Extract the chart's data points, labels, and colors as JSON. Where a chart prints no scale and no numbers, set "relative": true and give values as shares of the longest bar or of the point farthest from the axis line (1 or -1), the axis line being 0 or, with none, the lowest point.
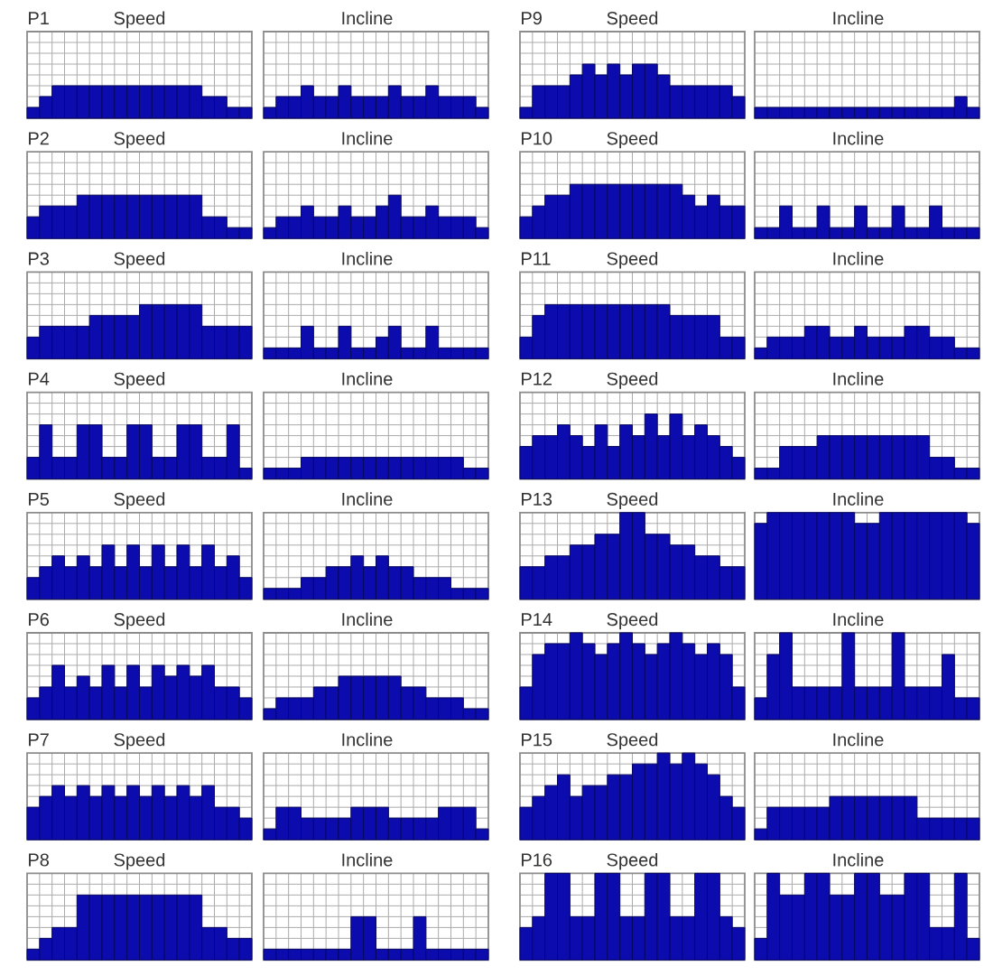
{
  "chart_data": [
    {
      "type": "bar",
      "title": "Speed",
      "annotations": [
        "P1"
      ],
      "categories": [
        null,
        null,
        null,
        null,
        null,
        null,
        null,
        null,
        null,
        null,
        null,
        null,
        null,
        null,
        null,
        null,
        null,
        null
      ],
      "values": [
        0.333,
        0.667,
        1,
        1,
        1,
        1,
        1,
        1,
        1,
        1,
        1,
        1,
        1,
        1,
        0.667,
        0.667,
        0.333,
        0.333
      ],
      "color": "#0c0cae",
      "relative": true,
      "grid": true
    },
    {
      "type": "bar",
      "title": "Incline",
      "categories": [
        null,
        null,
        null,
        null,
        null,
        null,
        null,
        null,
        null,
        null,
        null,
        null,
        null,
        null,
        null,
        null,
        null,
        null
      ],
      "values": [
        0.333,
        0.667,
        0.667,
        1,
        0.667,
        0.667,
        1,
        0.667,
        0.667,
        0.667,
        1,
        0.667,
        0.667,
        1,
        0.667,
        0.667,
        0.667,
        0.333
      ],
      "color": "#0c0cae",
      "relative": true,
      "grid": true
    },
    {
      "type": "bar",
      "title": "Speed",
      "annotations": [
        "P2"
      ],
      "categories": [
        null,
        null,
        null,
        null,
        null,
        null,
        null,
        null,
        null,
        null,
        null,
        null,
        null,
        null,
        null,
        null,
        null,
        null
      ],
      "values": [
        0.5,
        0.75,
        0.75,
        0.75,
        1,
        1,
        1,
        1,
        1,
        1,
        1,
        1,
        1,
        1,
        0.5,
        0.5,
        0.25,
        0.25
      ],
      "color": "#0c0cae",
      "relative": true,
      "grid": true
    },
    {
      "type": "bar",
      "title": "Incline",
      "categories": [
        null,
        null,
        null,
        null,
        null,
        null,
        null,
        null,
        null,
        null,
        null,
        null,
        null,
        null,
        null,
        null,
        null,
        null
      ],
      "values": [
        0.25,
        0.5,
        0.5,
        0.75,
        0.5,
        0.5,
        0.75,
        0.5,
        0.5,
        0.75,
        1,
        0.5,
        0.5,
        0.75,
        0.5,
        0.5,
        0.5,
        0.25
      ],
      "color": "#0c0cae",
      "relative": true,
      "grid": true
    },
    {
      "type": "bar",
      "title": "Speed",
      "annotations": [
        "P3"
      ],
      "categories": [
        null,
        null,
        null,
        null,
        null,
        null,
        null,
        null,
        null,
        null,
        null,
        null,
        null,
        null,
        null,
        null,
        null,
        null
      ],
      "values": [
        0.4,
        0.6,
        0.6,
        0.6,
        0.6,
        0.8,
        0.8,
        0.8,
        0.8,
        1,
        1,
        1,
        1,
        1,
        0.6,
        0.6,
        0.6,
        0.6
      ],
      "color": "#0c0cae",
      "relative": true,
      "grid": true
    },
    {
      "type": "bar",
      "title": "Incline",
      "categories": [
        null,
        null,
        null,
        null,
        null,
        null,
        null,
        null,
        null,
        null,
        null,
        null,
        null,
        null,
        null,
        null,
        null,
        null
      ],
      "values": [
        0.333,
        0.333,
        0.333,
        1,
        0.333,
        0.333,
        1,
        0.333,
        0.333,
        0.667,
        1,
        0.333,
        0.333,
        1,
        0.333,
        0.333,
        0.333,
        0.333
      ],
      "color": "#0c0cae",
      "relative": true,
      "grid": true
    },
    {
      "type": "bar",
      "title": "Speed",
      "annotations": [
        "P4"
      ],
      "categories": [
        null,
        null,
        null,
        null,
        null,
        null,
        null,
        null,
        null,
        null,
        null,
        null,
        null,
        null,
        null,
        null,
        null,
        null
      ],
      "values": [
        0.4,
        1,
        0.4,
        0.4,
        1,
        1,
        0.4,
        0.4,
        1,
        1,
        0.4,
        0.4,
        1,
        1,
        0.4,
        0.4,
        1,
        0.2
      ],
      "color": "#0c0cae",
      "relative": true,
      "grid": true
    },
    {
      "type": "bar",
      "title": "Incline",
      "categories": [
        null,
        null,
        null,
        null,
        null,
        null,
        null,
        null,
        null,
        null,
        null,
        null,
        null,
        null,
        null,
        null,
        null,
        null
      ],
      "values": [
        0.5,
        0.5,
        0.5,
        1,
        1,
        1,
        1,
        1,
        1,
        1,
        1,
        1,
        1,
        1,
        1,
        1,
        0.5,
        0.5
      ],
      "color": "#0c0cae",
      "relative": true,
      "grid": true
    },
    {
      "type": "bar",
      "title": "Speed",
      "annotations": [
        "P5"
      ],
      "categories": [
        null,
        null,
        null,
        null,
        null,
        null,
        null,
        null,
        null,
        null,
        null,
        null,
        null,
        null,
        null,
        null,
        null,
        null
      ],
      "values": [
        0.4,
        0.6,
        0.8,
        0.6,
        0.8,
        0.6,
        1,
        0.6,
        1,
        0.6,
        1,
        0.6,
        1,
        0.6,
        1,
        0.6,
        0.8,
        0.4
      ],
      "color": "#0c0cae",
      "relative": true,
      "grid": true
    },
    {
      "type": "bar",
      "title": "Incline",
      "categories": [
        null,
        null,
        null,
        null,
        null,
        null,
        null,
        null,
        null,
        null,
        null,
        null,
        null,
        null,
        null,
        null,
        null,
        null
      ],
      "values": [
        0.25,
        0.25,
        0.25,
        0.5,
        0.5,
        0.75,
        0.75,
        1,
        0.75,
        1,
        0.75,
        0.75,
        0.5,
        0.5,
        0.5,
        0.25,
        0.25,
        0.25
      ],
      "color": "#0c0cae",
      "relative": true,
      "grid": true
    },
    {
      "type": "bar",
      "title": "Speed",
      "annotations": [
        "P6"
      ],
      "categories": [
        null,
        null,
        null,
        null,
        null,
        null,
        null,
        null,
        null,
        null,
        null,
        null,
        null,
        null,
        null,
        null,
        null,
        null
      ],
      "values": [
        0.4,
        0.6,
        1,
        0.6,
        0.8,
        0.6,
        1,
        0.6,
        1,
        0.6,
        1,
        0.8,
        1,
        0.8,
        1,
        0.6,
        0.6,
        0.4
      ],
      "color": "#0c0cae",
      "relative": true,
      "grid": true
    },
    {
      "type": "bar",
      "title": "Incline",
      "categories": [
        null,
        null,
        null,
        null,
        null,
        null,
        null,
        null,
        null,
        null,
        null,
        null,
        null,
        null,
        null,
        null,
        null,
        null
      ],
      "values": [
        0.25,
        0.5,
        0.5,
        0.5,
        0.75,
        0.75,
        1,
        1,
        1,
        1,
        1,
        0.75,
        0.75,
        0.5,
        0.5,
        0.5,
        0.25,
        0.25
      ],
      "color": "#0c0cae",
      "relative": true,
      "grid": true
    },
    {
      "type": "bar",
      "title": "Speed",
      "annotations": [
        "P7"
      ],
      "categories": [
        null,
        null,
        null,
        null,
        null,
        null,
        null,
        null,
        null,
        null,
        null,
        null,
        null,
        null,
        null,
        null,
        null,
        null
      ],
      "values": [
        0.6,
        0.8,
        1,
        0.8,
        1,
        0.8,
        1,
        0.8,
        1,
        0.8,
        1,
        0.8,
        1,
        0.8,
        1,
        0.6,
        0.6,
        0.4
      ],
      "color": "#0c0cae",
      "relative": true,
      "grid": true
    },
    {
      "type": "bar",
      "title": "Incline",
      "categories": [
        null,
        null,
        null,
        null,
        null,
        null,
        null,
        null,
        null,
        null,
        null,
        null,
        null,
        null,
        null,
        null,
        null,
        null
      ],
      "values": [
        0.333,
        1,
        1,
        0.667,
        0.667,
        0.667,
        0.667,
        1,
        1,
        1,
        0.667,
        0.667,
        0.667,
        0.667,
        1,
        1,
        1,
        0.333
      ],
      "color": "#0c0cae",
      "relative": true,
      "grid": true
    },
    {
      "type": "bar",
      "title": "Speed",
      "annotations": [
        "P8"
      ],
      "categories": [
        null,
        null,
        null,
        null,
        null,
        null,
        null,
        null,
        null,
        null,
        null,
        null,
        null,
        null,
        null,
        null,
        null,
        null
      ],
      "values": [
        0.167,
        0.333,
        0.5,
        0.5,
        1,
        1,
        1,
        1,
        1,
        1,
        1,
        1,
        1,
        1,
        0.5,
        0.5,
        0.333,
        0.333
      ],
      "color": "#0c0cae",
      "relative": true,
      "grid": true
    },
    {
      "type": "bar",
      "title": "Incline",
      "categories": [
        null,
        null,
        null,
        null,
        null,
        null,
        null,
        null,
        null,
        null,
        null,
        null,
        null,
        null,
        null,
        null,
        null,
        null
      ],
      "values": [
        0.25,
        0.25,
        0.25,
        0.25,
        0.25,
        0.25,
        0.25,
        1,
        1,
        0.25,
        0.25,
        0.25,
        1,
        0.25,
        0.25,
        0.25,
        0.25,
        0.25
      ],
      "color": "#0c0cae",
      "relative": true,
      "grid": true
    },
    {
      "type": "bar",
      "title": "Speed",
      "annotations": [
        "P9"
      ],
      "categories": [
        null,
        null,
        null,
        null,
        null,
        null,
        null,
        null,
        null,
        null,
        null,
        null,
        null,
        null,
        null,
        null,
        null,
        null
      ],
      "values": [
        0.2,
        0.6,
        0.6,
        0.6,
        0.8,
        1,
        0.8,
        1,
        0.8,
        1,
        1,
        0.8,
        0.6,
        0.6,
        0.6,
        0.6,
        0.6,
        0.4
      ],
      "color": "#0c0cae",
      "relative": true,
      "grid": true
    },
    {
      "type": "bar",
      "title": "Incline",
      "categories": [
        null,
        null,
        null,
        null,
        null,
        null,
        null,
        null,
        null,
        null,
        null,
        null,
        null,
        null,
        null,
        null,
        null,
        null
      ],
      "values": [
        0.5,
        0.5,
        0.5,
        0.5,
        0.5,
        0.5,
        0.5,
        0.5,
        0.5,
        0.5,
        0.5,
        0.5,
        0.5,
        0.5,
        0.5,
        0.5,
        1,
        0.5
      ],
      "color": "#0c0cae",
      "relative": true,
      "grid": true
    },
    {
      "type": "bar",
      "title": "Speed",
      "annotations": [
        "P10"
      ],
      "categories": [
        null,
        null,
        null,
        null,
        null,
        null,
        null,
        null,
        null,
        null,
        null,
        null,
        null,
        null,
        null,
        null,
        null,
        null
      ],
      "values": [
        0.4,
        0.6,
        0.8,
        0.8,
        1,
        1,
        1,
        1,
        1,
        1,
        1,
        1,
        1,
        0.8,
        0.6,
        0.8,
        0.6,
        0.6
      ],
      "color": "#0c0cae",
      "relative": true,
      "grid": true
    },
    {
      "type": "bar",
      "title": "Incline",
      "categories": [
        null,
        null,
        null,
        null,
        null,
        null,
        null,
        null,
        null,
        null,
        null,
        null,
        null,
        null,
        null,
        null,
        null,
        null
      ],
      "values": [
        0.333,
        0.333,
        1,
        0.333,
        0.333,
        1,
        0.333,
        0.333,
        1,
        0.333,
        0.333,
        1,
        0.333,
        0.333,
        1,
        0.333,
        0.333,
        0.333
      ],
      "color": "#0c0cae",
      "relative": true,
      "grid": true
    },
    {
      "type": "bar",
      "title": "Speed",
      "annotations": [
        "P11"
      ],
      "categories": [
        null,
        null,
        null,
        null,
        null,
        null,
        null,
        null,
        null,
        null,
        null,
        null,
        null,
        null,
        null,
        null,
        null,
        null
      ],
      "values": [
        0.4,
        0.8,
        1,
        1,
        1,
        1,
        1,
        1,
        1,
        1,
        1,
        1,
        0.8,
        0.8,
        0.8,
        0.8,
        0.4,
        0.4
      ],
      "color": "#0c0cae",
      "relative": true,
      "grid": true
    },
    {
      "type": "bar",
      "title": "Incline",
      "categories": [
        null,
        null,
        null,
        null,
        null,
        null,
        null,
        null,
        null,
        null,
        null,
        null,
        null,
        null,
        null,
        null,
        null,
        null
      ],
      "values": [
        0.333,
        0.667,
        0.667,
        0.667,
        1,
        1,
        0.667,
        0.667,
        1,
        0.667,
        0.667,
        0.667,
        1,
        1,
        0.667,
        0.667,
        0.333,
        0.333
      ],
      "color": "#0c0cae",
      "relative": true,
      "grid": true
    },
    {
      "type": "bar",
      "title": "Speed",
      "annotations": [
        "P12"
      ],
      "categories": [
        null,
        null,
        null,
        null,
        null,
        null,
        null,
        null,
        null,
        null,
        null,
        null,
        null,
        null,
        null,
        null,
        null,
        null
      ],
      "values": [
        0.5,
        0.667,
        0.667,
        0.833,
        0.667,
        0.5,
        0.833,
        0.5,
        0.833,
        0.667,
        1,
        0.667,
        1,
        0.667,
        0.833,
        0.667,
        0.5,
        0.333
      ],
      "color": "#0c0cae",
      "relative": true,
      "grid": true
    },
    {
      "type": "bar",
      "title": "Incline",
      "categories": [
        null,
        null,
        null,
        null,
        null,
        null,
        null,
        null,
        null,
        null,
        null,
        null,
        null,
        null,
        null,
        null,
        null,
        null
      ],
      "values": [
        0.25,
        0.25,
        0.75,
        0.75,
        0.75,
        1,
        1,
        1,
        1,
        1,
        1,
        1,
        1,
        1,
        0.5,
        0.5,
        0.25,
        0.25
      ],
      "color": "#0c0cae",
      "relative": true,
      "grid": true
    },
    {
      "type": "bar",
      "title": "Speed",
      "annotations": [
        "P13"
      ],
      "categories": [
        null,
        null,
        null,
        null,
        null,
        null,
        null,
        null,
        null,
        null,
        null,
        null,
        null,
        null,
        null,
        null,
        null,
        null
      ],
      "values": [
        0.375,
        0.375,
        0.5,
        0.5,
        0.625,
        0.625,
        0.75,
        0.75,
        1,
        1,
        0.75,
        0.75,
        0.625,
        0.625,
        0.5,
        0.5,
        0.375,
        0.375
      ],
      "color": "#0c0cae",
      "relative": true,
      "grid": true
    },
    {
      "type": "bar",
      "title": "Incline",
      "categories": [
        null,
        null,
        null,
        null,
        null,
        null,
        null,
        null,
        null,
        null,
        null,
        null,
        null,
        null,
        null,
        null,
        null,
        null
      ],
      "values": [
        0.875,
        1,
        1,
        1,
        1,
        1,
        1,
        1,
        0.875,
        0.875,
        1,
        1,
        1,
        1,
        1,
        1,
        1,
        0.875
      ],
      "color": "#0c0cae",
      "relative": true,
      "grid": true
    },
    {
      "type": "bar",
      "title": "Speed",
      "annotations": [
        "P14"
      ],
      "categories": [
        null,
        null,
        null,
        null,
        null,
        null,
        null,
        null,
        null,
        null,
        null,
        null,
        null,
        null,
        null,
        null,
        null,
        null
      ],
      "values": [
        0.375,
        0.75,
        0.875,
        0.875,
        1,
        0.875,
        0.75,
        0.875,
        1,
        0.875,
        0.75,
        0.875,
        1,
        0.875,
        0.75,
        0.875,
        0.75,
        0.375
      ],
      "color": "#0c0cae",
      "relative": true,
      "grid": true
    },
    {
      "type": "bar",
      "title": "Incline",
      "categories": [
        null,
        null,
        null,
        null,
        null,
        null,
        null,
        null,
        null,
        null,
        null,
        null,
        null,
        null,
        null,
        null,
        null,
        null
      ],
      "values": [
        0.25,
        0.75,
        1,
        0.375,
        0.375,
        0.375,
        0.375,
        1,
        0.375,
        0.375,
        0.375,
        1,
        0.375,
        0.375,
        0.375,
        0.75,
        0.25,
        0.25
      ],
      "color": "#0c0cae",
      "relative": true,
      "grid": true
    },
    {
      "type": "bar",
      "title": "Speed",
      "annotations": [
        "P15"
      ],
      "categories": [
        null,
        null,
        null,
        null,
        null,
        null,
        null,
        null,
        null,
        null,
        null,
        null,
        null,
        null,
        null,
        null,
        null,
        null
      ],
      "values": [
        0.375,
        0.5,
        0.625,
        0.75,
        0.5,
        0.625,
        0.625,
        0.75,
        0.75,
        0.875,
        0.875,
        1,
        0.875,
        1,
        0.875,
        0.75,
        0.5,
        0.375
      ],
      "color": "#0c0cae",
      "relative": true,
      "grid": true
    },
    {
      "type": "bar",
      "title": "Incline",
      "categories": [
        null,
        null,
        null,
        null,
        null,
        null,
        null,
        null,
        null,
        null,
        null,
        null,
        null,
        null,
        null,
        null,
        null,
        null
      ],
      "values": [
        0.25,
        0.75,
        0.75,
        0.75,
        0.75,
        0.75,
        1,
        1,
        1,
        1,
        1,
        1,
        1,
        0.5,
        0.5,
        0.5,
        0.5,
        0.5
      ],
      "color": "#0c0cae",
      "relative": true,
      "grid": true
    },
    {
      "type": "bar",
      "title": "Speed",
      "annotations": [
        "P16"
      ],
      "categories": [
        null,
        null,
        null,
        null,
        null,
        null,
        null,
        null,
        null,
        null,
        null,
        null,
        null,
        null,
        null,
        null,
        null,
        null
      ],
      "values": [
        0.375,
        0.5,
        1,
        1,
        0.5,
        0.5,
        1,
        1,
        0.5,
        0.5,
        1,
        1,
        0.5,
        0.5,
        1,
        1,
        0.5,
        0.375
      ],
      "color": "#0c0cae",
      "relative": true,
      "grid": true
    },
    {
      "type": "bar",
      "title": "Incline",
      "categories": [
        null,
        null,
        null,
        null,
        null,
        null,
        null,
        null,
        null,
        null,
        null,
        null,
        null,
        null,
        null,
        null,
        null,
        null
      ],
      "values": [
        0.25,
        1,
        0.75,
        0.75,
        1,
        1,
        0.75,
        0.75,
        1,
        1,
        0.75,
        0.75,
        1,
        1,
        0.375,
        0.375,
        1,
        0.25
      ],
      "color": "#0c0cae",
      "relative": true,
      "grid": true
    }
  ]
}
